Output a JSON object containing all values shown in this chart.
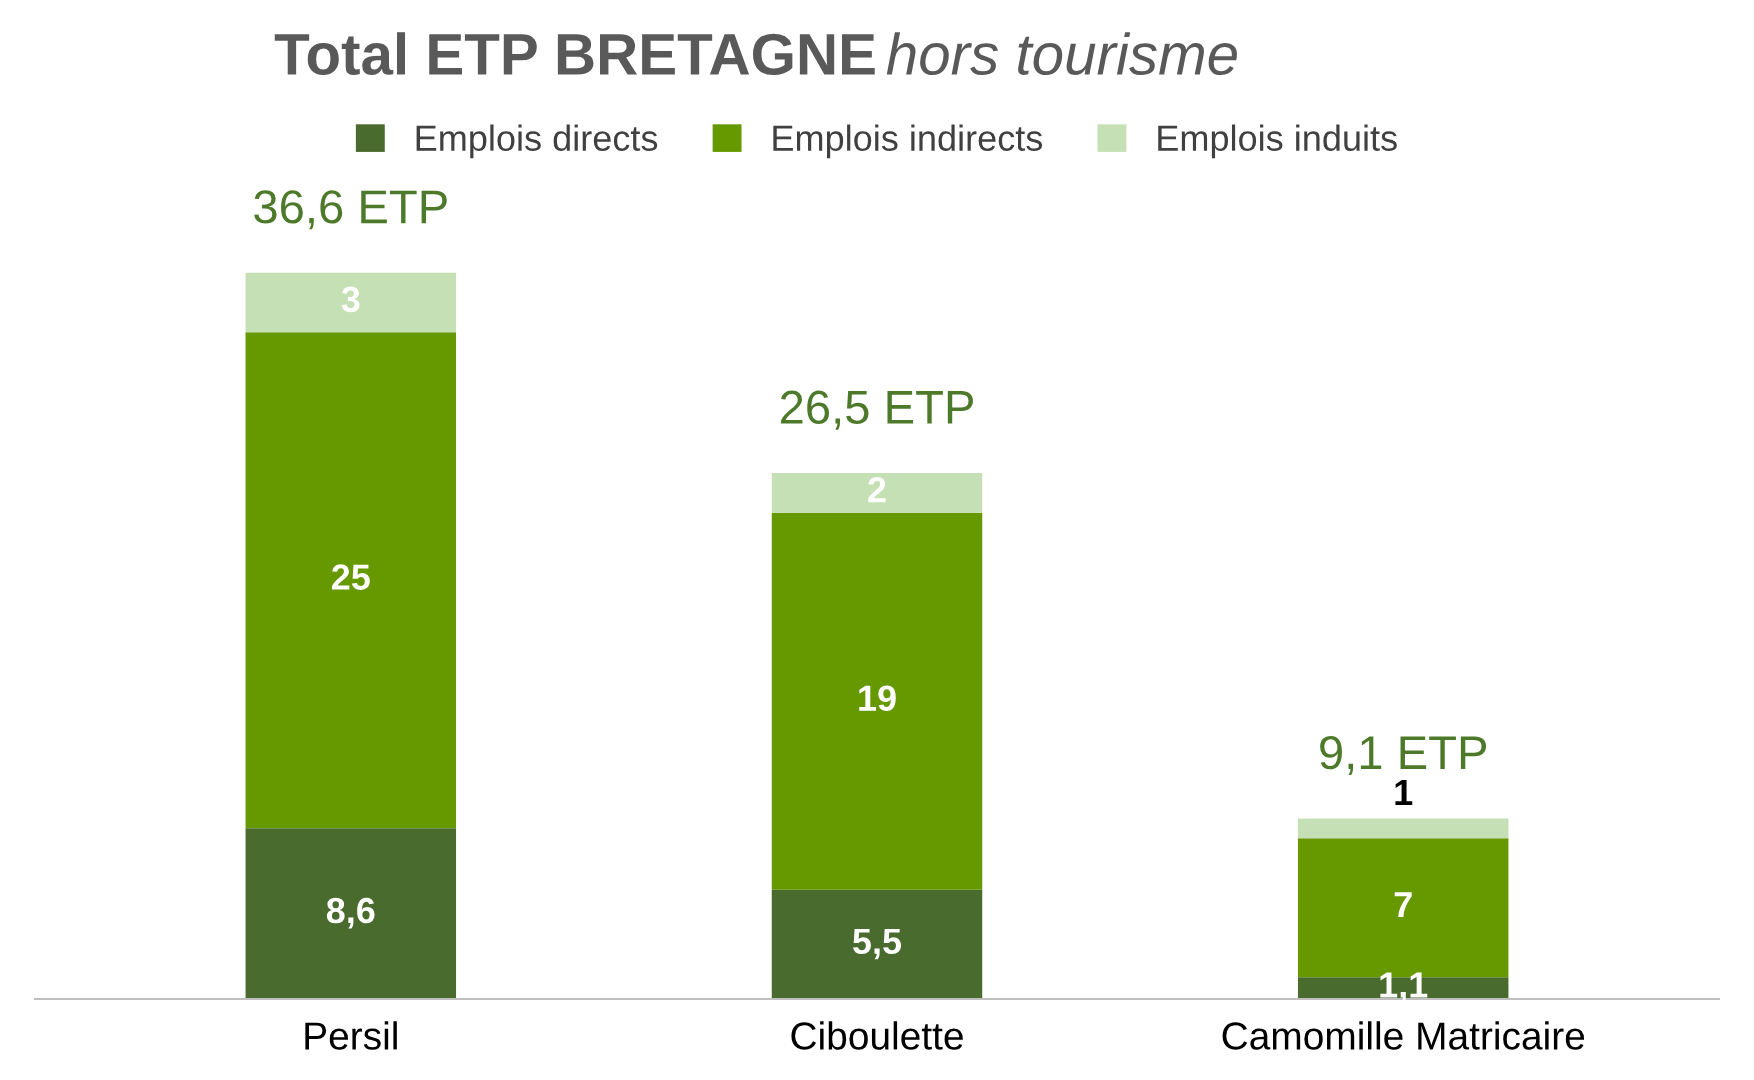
{
  "chart_data": {
    "type": "bar",
    "stacked": true,
    "title": "Total ETP BRETAGNE",
    "subtitle": "hors tourisme",
    "categories": [
      "Persil",
      "Ciboulette",
      "Camomille Matricaire"
    ],
    "series": [
      {
        "name": "Emplois directs",
        "color": "#4a6b2e",
        "values": [
          8.6,
          5.5,
          1.1
        ],
        "value_labels": [
          "8,6",
          "5,5",
          "1,1"
        ]
      },
      {
        "name": "Emplois indirects",
        "color": "#669900",
        "values": [
          25,
          19,
          7
        ],
        "value_labels": [
          "25",
          "19",
          "7"
        ]
      },
      {
        "name": "Emplois induits",
        "color": "#c5e0b4",
        "values": [
          3,
          2,
          1
        ],
        "value_labels": [
          "3",
          "2",
          "1"
        ]
      }
    ],
    "totals": [
      "36,6 ETP",
      "26,5 ETP",
      "9,1 ETP"
    ],
    "legend": "top",
    "grid": false
  }
}
